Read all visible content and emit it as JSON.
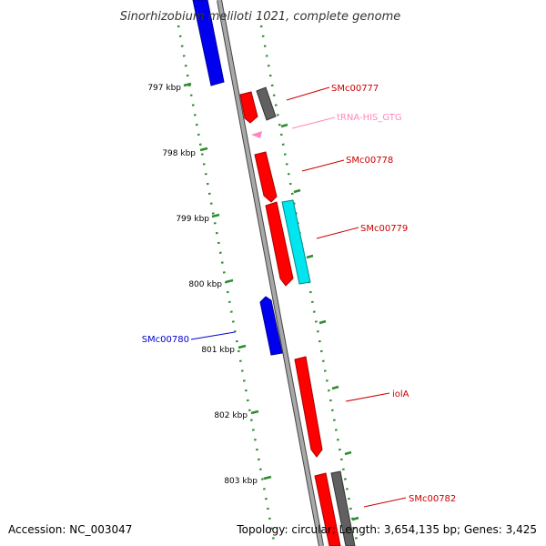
{
  "title": "Sinorhizobium meliloti 1021, complete genome",
  "footer": {
    "accession": "Accession: NC_003047",
    "summary": "Topology: circular; Length: 3,654,135 bp; Genes: 3,425"
  },
  "colors": {
    "backbone": "#8a8a8a",
    "tick": "#2e8b2e",
    "gene_red": "#ff0000",
    "gene_blue": "#0000ee",
    "gene_grey": "#606060",
    "gene_cyan": "#00e5ee",
    "trna_pink": "#ff88bb",
    "label_red": "#cc0000",
    "label_blue": "#0000cc",
    "label_pink": "#ff88bb"
  },
  "ticks": [
    "797 kbp",
    "798 kbp",
    "799 kbp",
    "800 kbp",
    "801 kbp",
    "802 kbp",
    "803 kbp"
  ],
  "labels": {
    "SMc00777": "SMc00777",
    "tRNA": "tRNA-HIS_GTG",
    "SMc00778": "SMc00778",
    "SMc00779": "SMc00779",
    "SMc00780": "SMc00780",
    "iolA": "iolA",
    "SMc00782": "SMc00782"
  }
}
